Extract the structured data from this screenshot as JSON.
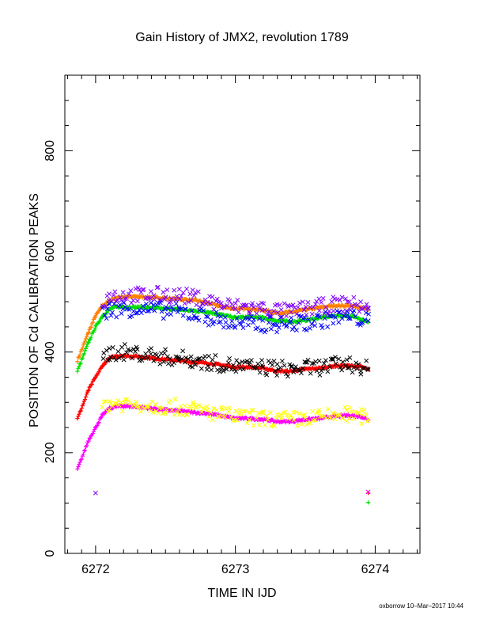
{
  "title": "Gain History of JMX2, revolution 1789",
  "footer": "oxborrow 10–Mar–2017 10:44",
  "chart_data": {
    "type": "scatter",
    "title": "Gain History of JMX2, revolution 1789",
    "xlabel": "TIME IN IJD",
    "ylabel": "POSITION OF Cd CALIBRATION PEAKS",
    "xlim": [
      6271.78,
      6274.32
    ],
    "ylim": [
      0,
      950
    ],
    "xticks": [
      6272,
      6273,
      6274
    ],
    "xtick_labels": [
      "6272",
      "6273",
      "6274"
    ],
    "yticks": [
      0,
      200,
      400,
      600,
      800
    ],
    "ytick_labels": [
      "0",
      "200",
      "400",
      "600",
      "800"
    ],
    "grid": false,
    "legend": "none",
    "series": [
      {
        "color": "#ff8000",
        "marker": "plus",
        "x": [
          6271.87,
          6271.95,
          6272.0,
          6272.05,
          6272.1,
          6272.15,
          6272.2,
          6272.3,
          6272.4,
          6272.5,
          6272.6,
          6272.7,
          6272.8,
          6272.9,
          6273.0,
          6273.1,
          6273.2,
          6273.3,
          6273.4,
          6273.5,
          6273.6,
          6273.7,
          6273.8,
          6273.9,
          6273.95
        ],
        "y": [
          383,
          440,
          472,
          492,
          503,
          508,
          510,
          510,
          509,
          507,
          505,
          503,
          498,
          490,
          486,
          486,
          483,
          478,
          479,
          484,
          488,
          492,
          492,
          489,
          484
        ]
      },
      {
        "color": "#00e000",
        "marker": "plus",
        "x": [
          6271.87,
          6271.95,
          6272.0,
          6272.05,
          6272.1,
          6272.15,
          6272.2,
          6272.3,
          6272.4,
          6272.5,
          6272.6,
          6272.7,
          6272.8,
          6272.9,
          6273.0,
          6273.1,
          6273.2,
          6273.3,
          6273.4,
          6273.5,
          6273.6,
          6273.7,
          6273.8,
          6273.9,
          6273.95
        ],
        "y": [
          362,
          420,
          450,
          472,
          485,
          490,
          490,
          489,
          488,
          486,
          484,
          482,
          480,
          474,
          468,
          470,
          468,
          462,
          460,
          463,
          468,
          472,
          472,
          466,
          460
        ]
      },
      {
        "color": "#ff0000",
        "marker": "plus",
        "x": [
          6271.87,
          6271.95,
          6272.0,
          6272.05,
          6272.1,
          6272.15,
          6272.2,
          6272.3,
          6272.4,
          6272.5,
          6272.6,
          6272.7,
          6272.8,
          6272.9,
          6273.0,
          6273.1,
          6273.2,
          6273.3,
          6273.4,
          6273.5,
          6273.6,
          6273.7,
          6273.8,
          6273.9,
          6273.95
        ],
        "y": [
          267,
          325,
          350,
          373,
          388,
          392,
          393,
          391,
          388,
          385,
          383,
          380,
          378,
          374,
          370,
          370,
          368,
          362,
          362,
          366,
          368,
          372,
          373,
          371,
          365
        ]
      },
      {
        "color": "#ff00ff",
        "marker": "plus",
        "x": [
          6271.87,
          6271.95,
          6272.0,
          6272.05,
          6272.1,
          6272.15,
          6272.2,
          6272.3,
          6272.4,
          6272.5,
          6272.6,
          6272.7,
          6272.8,
          6272.9,
          6273.0,
          6273.1,
          6273.2,
          6273.3,
          6273.4,
          6273.5,
          6273.6,
          6273.7,
          6273.8,
          6273.9,
          6273.95
        ],
        "y": [
          167,
          225,
          250,
          275,
          288,
          292,
          293,
          291,
          288,
          285,
          283,
          280,
          278,
          273,
          268,
          268,
          266,
          262,
          262,
          266,
          268,
          272,
          274,
          272,
          265
        ]
      },
      {
        "color": "#8000ff",
        "marker": "cross",
        "x": [
          6272.05,
          6272.1,
          6272.2,
          6272.3,
          6272.4,
          6272.5,
          6272.6,
          6272.7,
          6272.8,
          6272.9,
          6273.0,
          6273.1,
          6273.2,
          6273.3,
          6273.4,
          6273.5,
          6273.6,
          6273.7,
          6273.8,
          6273.9,
          6273.95
        ],
        "y": [
          500,
          512,
          512,
          513,
          513,
          514,
          512,
          508,
          502,
          494,
          490,
          488,
          486,
          482,
          480,
          486,
          490,
          494,
          495,
          492,
          488
        ]
      },
      {
        "color": "#0000ff",
        "marker": "cross",
        "x": [
          6272.05,
          6272.1,
          6272.2,
          6272.3,
          6272.4,
          6272.5,
          6272.6,
          6272.7,
          6272.8,
          6272.9,
          6273.0,
          6273.1,
          6273.2,
          6273.3,
          6273.4,
          6273.5,
          6273.6,
          6273.7,
          6273.8,
          6273.9,
          6273.95
        ],
        "y": [
          475,
          485,
          486,
          485,
          484,
          482,
          480,
          476,
          470,
          462,
          455,
          455,
          455,
          455,
          456,
          458,
          462,
          468,
          470,
          466,
          462
        ]
      },
      {
        "color": "#000000",
        "marker": "cross",
        "x": [
          6272.05,
          6272.1,
          6272.2,
          6272.3,
          6272.4,
          6272.5,
          6272.6,
          6272.7,
          6272.8,
          6272.9,
          6273.0,
          6273.1,
          6273.2,
          6273.3,
          6273.4,
          6273.5,
          6273.6,
          6273.7,
          6273.8,
          6273.9,
          6273.95
        ],
        "y": [
          388,
          398,
          400,
          398,
          394,
          390,
          388,
          384,
          380,
          376,
          372,
          370,
          370,
          368,
          366,
          368,
          370,
          374,
          376,
          372,
          365
        ]
      },
      {
        "color": "#ffff00",
        "marker": "cross",
        "x": [
          6272.05,
          6272.1,
          6272.2,
          6272.3,
          6272.4,
          6272.5,
          6272.6,
          6272.7,
          6272.8,
          6272.9,
          6273.0,
          6273.1,
          6273.2,
          6273.3,
          6273.4,
          6273.5,
          6273.6,
          6273.7,
          6273.8,
          6273.9,
          6273.95
        ],
        "y": [
          290,
          298,
          298,
          296,
          294,
          292,
          290,
          286,
          282,
          276,
          272,
          270,
          268,
          266,
          266,
          268,
          270,
          274,
          276,
          273,
          266
        ]
      },
      {
        "color": "#8000ff",
        "marker": "cross",
        "x": [
          6272.0
        ],
        "y": [
          120
        ]
      },
      {
        "color": "#ff0000",
        "marker": "plus",
        "x": [
          6273.95
        ],
        "y": [
          120
        ]
      },
      {
        "color": "#ff00ff",
        "marker": "cross",
        "x": [
          6273.95
        ],
        "y": [
          122
        ]
      },
      {
        "color": "#00e000",
        "marker": "plus",
        "x": [
          6273.95
        ],
        "y": [
          101
        ]
      }
    ]
  }
}
